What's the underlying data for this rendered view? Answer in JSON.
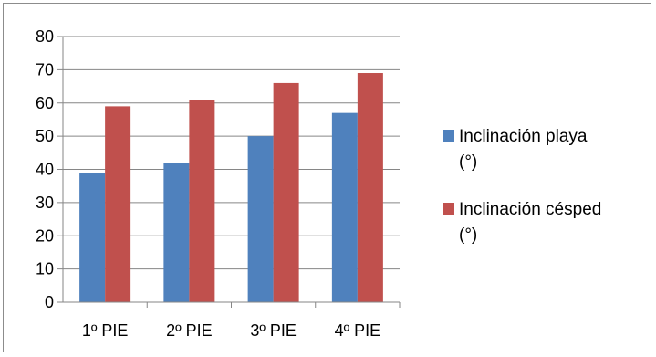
{
  "chart_data": {
    "type": "bar",
    "categories": [
      "1º PIE",
      "2º PIE",
      "3º PIE",
      "4º PIE"
    ],
    "series": [
      {
        "name": "Inclinación playa (°)",
        "legend_lines": [
          "Inclinación playa",
          "(°)"
        ],
        "color": "#4f81bd",
        "values": [
          39,
          42,
          50,
          57
        ]
      },
      {
        "name": "Inclinación césped (°)",
        "legend_lines": [
          "Inclinación césped",
          "(°)"
        ],
        "color": "#c0504d",
        "values": [
          59,
          61,
          66,
          69
        ]
      }
    ],
    "ylim": [
      0,
      80
    ],
    "yticks": [
      0,
      10,
      20,
      30,
      40,
      50,
      60,
      70,
      80
    ],
    "grid": true,
    "legend_position": "right"
  }
}
